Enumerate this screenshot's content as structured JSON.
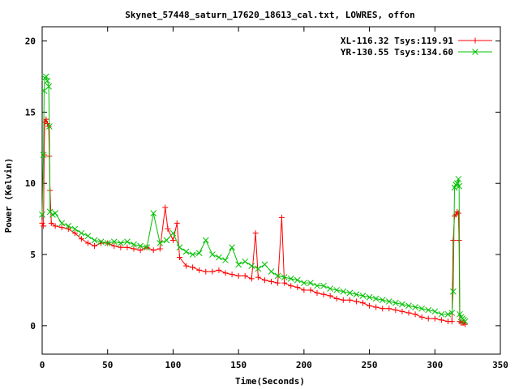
{
  "chart_data": {
    "type": "scatter",
    "title": "Skynet_57448_saturn_17620_18613_cal.txt, LOWRES, offon",
    "xlabel": "Time(Seconds)",
    "ylabel": "Power (Kelvin)",
    "xlim": [
      0,
      350
    ],
    "ylim": [
      -2,
      21
    ],
    "xticks": [
      0,
      50,
      100,
      150,
      200,
      250,
      300,
      350
    ],
    "yticks": [
      0,
      5,
      10,
      15,
      20
    ],
    "grid": false,
    "legend_position": "top-right",
    "series": [
      {
        "name": "XL-116.32 Tsys:119.91",
        "color": "#ff0000",
        "marker": "plus",
        "points": [
          [
            0,
            7.2
          ],
          [
            1,
            7.0
          ],
          [
            1.5,
            12.0
          ],
          [
            2,
            14.3
          ],
          [
            3,
            14.5
          ],
          [
            4,
            14.2
          ],
          [
            5,
            14.0
          ],
          [
            5.5,
            11.9
          ],
          [
            6,
            9.5
          ],
          [
            7,
            7.2
          ],
          [
            10,
            7.0
          ],
          [
            15,
            6.9
          ],
          [
            20,
            6.8
          ],
          [
            25,
            6.5
          ],
          [
            30,
            6.1
          ],
          [
            35,
            5.8
          ],
          [
            40,
            5.6
          ],
          [
            45,
            5.8
          ],
          [
            50,
            5.8
          ],
          [
            55,
            5.6
          ],
          [
            60,
            5.5
          ],
          [
            65,
            5.5
          ],
          [
            70,
            5.4
          ],
          [
            75,
            5.3
          ],
          [
            80,
            5.5
          ],
          [
            85,
            5.3
          ],
          [
            90,
            5.4
          ],
          [
            94,
            8.3
          ],
          [
            96,
            6.8
          ],
          [
            100,
            6.0
          ],
          [
            103,
            7.2
          ],
          [
            105,
            4.8
          ],
          [
            110,
            4.2
          ],
          [
            115,
            4.1
          ],
          [
            120,
            3.9
          ],
          [
            125,
            3.8
          ],
          [
            130,
            3.8
          ],
          [
            135,
            3.9
          ],
          [
            140,
            3.7
          ],
          [
            145,
            3.6
          ],
          [
            150,
            3.5
          ],
          [
            155,
            3.5
          ],
          [
            160,
            3.3
          ],
          [
            163,
            6.5
          ],
          [
            165,
            3.4
          ],
          [
            170,
            3.2
          ],
          [
            175,
            3.1
          ],
          [
            180,
            3.0
          ],
          [
            183,
            7.6
          ],
          [
            185,
            3.0
          ],
          [
            190,
            2.8
          ],
          [
            195,
            2.7
          ],
          [
            200,
            2.5
          ],
          [
            205,
            2.5
          ],
          [
            210,
            2.3
          ],
          [
            215,
            2.2
          ],
          [
            220,
            2.1
          ],
          [
            225,
            1.9
          ],
          [
            230,
            1.8
          ],
          [
            235,
            1.8
          ],
          [
            240,
            1.7
          ],
          [
            245,
            1.6
          ],
          [
            250,
            1.4
          ],
          [
            255,
            1.3
          ],
          [
            260,
            1.2
          ],
          [
            265,
            1.2
          ],
          [
            270,
            1.1
          ],
          [
            275,
            1.0
          ],
          [
            280,
            0.9
          ],
          [
            285,
            0.8
          ],
          [
            290,
            0.6
          ],
          [
            295,
            0.5
          ],
          [
            300,
            0.5
          ],
          [
            305,
            0.4
          ],
          [
            310,
            0.3
          ],
          [
            313,
            0.3
          ],
          [
            314,
            6.0
          ],
          [
            315,
            7.7
          ],
          [
            316,
            7.8
          ],
          [
            317,
            8.0
          ],
          [
            318,
            7.9
          ],
          [
            318.5,
            6.0
          ],
          [
            319,
            0.3
          ],
          [
            320,
            0.2
          ],
          [
            321,
            0.2
          ],
          [
            322,
            0.2
          ],
          [
            323,
            0.1
          ]
        ]
      },
      {
        "name": "YR-130.55 Tsys:134.60",
        "color": "#00c000",
        "marker": "cross",
        "points": [
          [
            0,
            7.8
          ],
          [
            1,
            12.0
          ],
          [
            1.5,
            16.5
          ],
          [
            2,
            17.4
          ],
          [
            3,
            17.5
          ],
          [
            4,
            17.2
          ],
          [
            5,
            16.8
          ],
          [
            5.5,
            14.0
          ],
          [
            6,
            8.0
          ],
          [
            8,
            7.8
          ],
          [
            10,
            7.9
          ],
          [
            15,
            7.2
          ],
          [
            20,
            7.0
          ],
          [
            25,
            6.8
          ],
          [
            30,
            6.5
          ],
          [
            35,
            6.3
          ],
          [
            40,
            6.0
          ],
          [
            45,
            5.9
          ],
          [
            50,
            5.8
          ],
          [
            55,
            5.9
          ],
          [
            60,
            5.8
          ],
          [
            65,
            5.9
          ],
          [
            70,
            5.7
          ],
          [
            75,
            5.6
          ],
          [
            80,
            5.5
          ],
          [
            85,
            7.9
          ],
          [
            90,
            5.8
          ],
          [
            95,
            6.0
          ],
          [
            100,
            6.5
          ],
          [
            105,
            5.5
          ],
          [
            110,
            5.2
          ],
          [
            115,
            5.0
          ],
          [
            120,
            5.1
          ],
          [
            125,
            6.0
          ],
          [
            130,
            5.0
          ],
          [
            135,
            4.8
          ],
          [
            140,
            4.6
          ],
          [
            145,
            5.5
          ],
          [
            150,
            4.3
          ],
          [
            155,
            4.5
          ],
          [
            160,
            4.2
          ],
          [
            165,
            4.0
          ],
          [
            170,
            4.3
          ],
          [
            175,
            3.8
          ],
          [
            180,
            3.5
          ],
          [
            185,
            3.4
          ],
          [
            190,
            3.3
          ],
          [
            195,
            3.2
          ],
          [
            200,
            3.0
          ],
          [
            205,
            3.0
          ],
          [
            210,
            2.8
          ],
          [
            215,
            2.8
          ],
          [
            220,
            2.6
          ],
          [
            225,
            2.5
          ],
          [
            230,
            2.4
          ],
          [
            235,
            2.3
          ],
          [
            240,
            2.2
          ],
          [
            245,
            2.1
          ],
          [
            250,
            2.0
          ],
          [
            255,
            1.9
          ],
          [
            260,
            1.8
          ],
          [
            265,
            1.7
          ],
          [
            270,
            1.6
          ],
          [
            275,
            1.5
          ],
          [
            280,
            1.4
          ],
          [
            285,
            1.3
          ],
          [
            290,
            1.2
          ],
          [
            295,
            1.1
          ],
          [
            300,
            1.0
          ],
          [
            305,
            0.8
          ],
          [
            310,
            0.8
          ],
          [
            313,
            0.9
          ],
          [
            314,
            2.4
          ],
          [
            315,
            9.7
          ],
          [
            316,
            9.9
          ],
          [
            317,
            10.0
          ],
          [
            318,
            10.3
          ],
          [
            318.5,
            9.8
          ],
          [
            319,
            0.8
          ],
          [
            320,
            0.6
          ],
          [
            321,
            0.5
          ],
          [
            322,
            0.4
          ],
          [
            323,
            0.3
          ]
        ]
      }
    ]
  }
}
